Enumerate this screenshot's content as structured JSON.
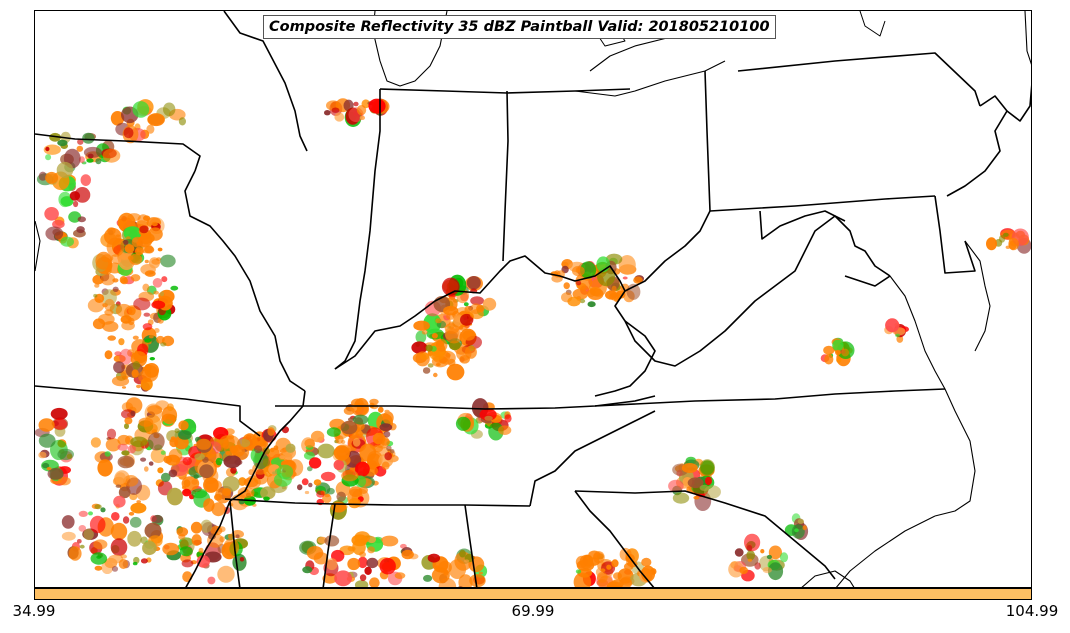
{
  "title": "Composite Reflectivity 35 dBZ Paintball Valid: 201805210100",
  "colorbar": {
    "color": "#fdbf63",
    "ticks": [
      "34.99",
      "69.99",
      "104.99"
    ]
  },
  "storm_colors": [
    "#ff0000",
    "#cc0000",
    "#ff4d4d",
    "#00bb00",
    "#33dd33",
    "#2e8b2e",
    "#8b2e2e",
    "#a0522d",
    "#8b8b00",
    "#b5a642",
    "#ff8c00",
    "#ffa040",
    "#ff7f00"
  ],
  "core_color": "#ff7f00",
  "map": {
    "border_color": "#000000"
  }
}
